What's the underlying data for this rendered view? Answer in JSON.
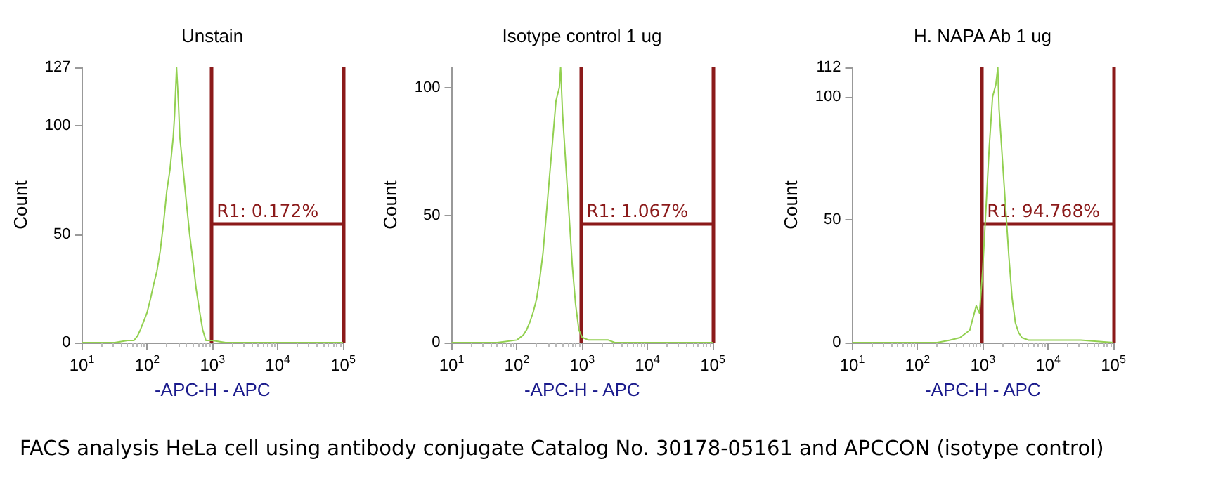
{
  "chart_data": [
    {
      "type": "line",
      "title": "Unstain",
      "xlabel": "-APC-H - APC",
      "ylabel": "Count",
      "log": "x",
      "grid": false,
      "marker": "none",
      "xlim": [
        10,
        100000
      ],
      "xticks": [
        {
          "value": 10,
          "label": "10$^{1}$"
        },
        {
          "value": 100,
          "label": "10$^{2}$"
        },
        {
          "value": 1000,
          "label": "10$^{3}$"
        },
        {
          "value": 10000,
          "label": "10$^{4}$"
        },
        {
          "value": 100000,
          "label": "10$^{5}$"
        }
      ],
      "ylim": [
        0,
        127
      ],
      "yticks": [
        0,
        50,
        100,
        127
      ],
      "series": [
        {
          "color": "#92d050",
          "x": [
            10,
            32,
            50,
            63,
            71,
            79,
            89,
            100,
            112,
            126,
            141,
            158,
            178,
            200,
            224,
            251,
            263,
            282,
            302,
            316,
            355,
            398,
            447,
            501,
            562,
            631,
            708,
            794,
            1000,
            1585,
            3162,
            100000
          ],
          "values": [
            0,
            0,
            1,
            1,
            3,
            6,
            10,
            14,
            20,
            27,
            33,
            42,
            55,
            70,
            80,
            95,
            105,
            127,
            110,
            95,
            80,
            65,
            50,
            38,
            25,
            15,
            6,
            1,
            1,
            0,
            0,
            0
          ]
        }
      ],
      "ref_lines": [
        {
          "axis": "x",
          "value": 950,
          "color": "#8b1a1a"
        },
        {
          "axis": "x",
          "value": 100000,
          "color": "#8b1a1a"
        }
      ],
      "annotations": [
        "R1: 0.172%",
        "FACS analysis HeLa cell using antibody conjugate Catalog No. 30178-05161 and APCCON (isotype control)"
      ]
    },
    {
      "type": "line",
      "title": "Isotype control 1 ug",
      "xlabel": "-APC-H - APC",
      "ylabel": "Count",
      "log": "x",
      "grid": false,
      "marker": "none",
      "xlim": [
        10,
        100000
      ],
      "xticks": [
        {
          "value": 10,
          "label": "10$^{1}$"
        },
        {
          "value": 100,
          "label": "10$^{2}$"
        },
        {
          "value": 1000,
          "label": "10$^{3}$"
        },
        {
          "value": 10000,
          "label": "10$^{4}$"
        },
        {
          "value": 100000,
          "label": "10$^{5}$"
        }
      ],
      "ylim": [
        0,
        108
      ],
      "yticks": [
        0,
        50,
        100
      ],
      "series": [
        {
          "color": "#92d050",
          "x": [
            10,
            50,
            100,
            126,
            141,
            158,
            178,
            200,
            224,
            251,
            282,
            316,
            355,
            398,
            447,
            468,
            501,
            562,
            631,
            708,
            794,
            891,
            1000,
            1259,
            1585,
            2512,
            3162,
            100000
          ],
          "values": [
            0,
            0,
            1,
            3,
            5,
            8,
            12,
            17,
            25,
            35,
            50,
            65,
            80,
            95,
            100,
            108,
            90,
            70,
            50,
            30,
            15,
            5,
            2,
            1,
            1,
            1,
            0,
            0
          ]
        }
      ],
      "ref_lines": [
        {
          "axis": "x",
          "value": 950,
          "color": "#8b1a1a"
        },
        {
          "axis": "x",
          "value": 100000,
          "color": "#8b1a1a"
        }
      ],
      "annotations": [
        "R1: 1.067%"
      ]
    },
    {
      "type": "line",
      "title": "H. NAPA Ab 1 ug",
      "xlabel": "-APC-H - APC",
      "ylabel": "Count",
      "log": "x",
      "grid": false,
      "marker": "none",
      "xlim": [
        10,
        100000
      ],
      "xticks": [
        {
          "value": 10,
          "label": "10$^{1}$"
        },
        {
          "value": 100,
          "label": "10$^{2}$"
        },
        {
          "value": 1000,
          "label": "10$^{3}$"
        },
        {
          "value": 10000,
          "label": "10$^{4}$"
        },
        {
          "value": 100000,
          "label": "10$^{5}$"
        }
      ],
      "ylim": [
        0,
        112
      ],
      "yticks": [
        0,
        50,
        100,
        112
      ],
      "series": [
        {
          "color": "#92d050",
          "x": [
            10,
            200,
            316,
            447,
            631,
            708,
            794,
            891,
            1000,
            1122,
            1259,
            1413,
            1585,
            1700,
            1778,
            1995,
            2239,
            2512,
            2818,
            3162,
            3548,
            3981,
            5012,
            10000,
            31623,
            100000
          ],
          "values": [
            0,
            0,
            1,
            2,
            5,
            10,
            15,
            12,
            30,
            55,
            80,
            100,
            105,
            112,
            95,
            75,
            55,
            35,
            18,
            8,
            4,
            2,
            1,
            1,
            1,
            0
          ]
        }
      ],
      "ref_lines": [
        {
          "axis": "x",
          "value": 950,
          "color": "#8b1a1a"
        },
        {
          "axis": "x",
          "value": 100000,
          "color": "#8b1a1a"
        }
      ],
      "annotations": [
        "R1: 94.768%"
      ]
    }
  ]
}
